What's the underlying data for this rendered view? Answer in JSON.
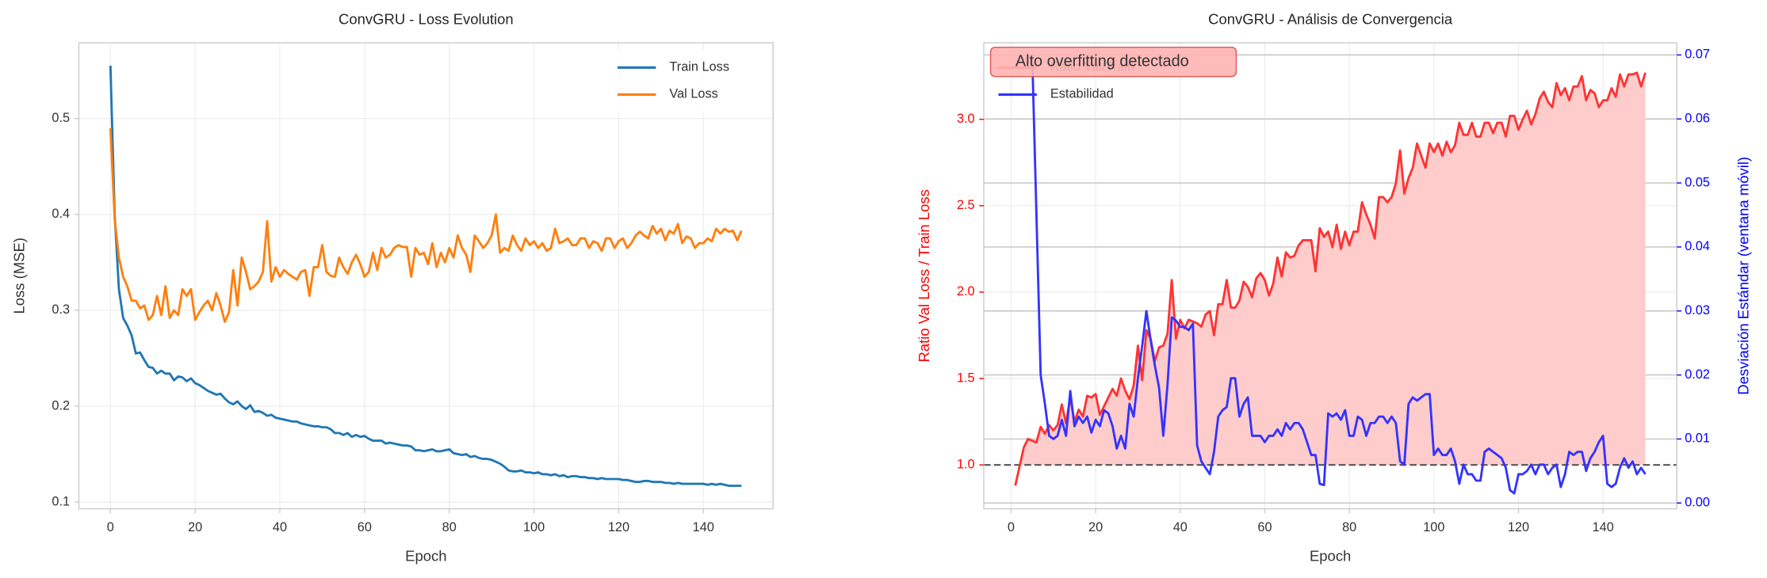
{
  "chart_data": [
    {
      "type": "line",
      "title": "ConvGRU - Loss Evolution",
      "xlabel": "Epoch",
      "ylabel": "Loss (MSE)",
      "x": [
        0,
        1,
        2,
        3,
        4,
        5,
        6,
        7,
        8,
        9,
        10,
        11,
        12,
        13,
        14,
        15,
        16,
        17,
        18,
        19,
        20,
        21,
        22,
        23,
        24,
        25,
        26,
        27,
        28,
        29,
        30,
        31,
        32,
        33,
        34,
        35,
        36,
        37,
        38,
        39,
        40,
        41,
        42,
        43,
        44,
        45,
        46,
        47,
        48,
        49,
        50,
        51,
        52,
        53,
        54,
        55,
        56,
        57,
        58,
        59,
        60,
        61,
        62,
        63,
        64,
        65,
        66,
        67,
        68,
        69,
        70,
        71,
        72,
        73,
        74,
        75,
        76,
        77,
        78,
        79,
        80,
        81,
        82,
        83,
        84,
        85,
        86,
        87,
        88,
        89,
        90,
        91,
        92,
        93,
        94,
        95,
        96,
        97,
        98,
        99,
        100,
        101,
        102,
        103,
        104,
        105,
        106,
        107,
        108,
        109,
        110,
        111,
        112,
        113,
        114,
        115,
        116,
        117,
        118,
        119,
        120,
        121,
        122,
        123,
        124,
        125,
        126,
        127,
        128,
        129,
        130,
        131,
        132,
        133,
        134,
        135,
        136,
        137,
        138,
        139,
        140,
        141,
        142,
        143,
        144,
        145,
        146,
        147,
        148,
        149
      ],
      "series": [
        {
          "name": "Train Loss",
          "color": "#1f77b4",
          "values": [
            0.555,
            0.4,
            0.322,
            0.292,
            0.284,
            0.274,
            0.255,
            0.256,
            0.248,
            0.241,
            0.24,
            0.234,
            0.237,
            0.234,
            0.234,
            0.227,
            0.231,
            0.23,
            0.226,
            0.229,
            0.224,
            0.222,
            0.219,
            0.216,
            0.214,
            0.212,
            0.213,
            0.208,
            0.204,
            0.202,
            0.205,
            0.2,
            0.197,
            0.201,
            0.194,
            0.195,
            0.193,
            0.19,
            0.191,
            0.188,
            0.187,
            0.186,
            0.185,
            0.184,
            0.184,
            0.182,
            0.181,
            0.18,
            0.179,
            0.179,
            0.178,
            0.178,
            0.176,
            0.172,
            0.172,
            0.17,
            0.172,
            0.168,
            0.17,
            0.168,
            0.169,
            0.166,
            0.164,
            0.164,
            0.164,
            0.161,
            0.162,
            0.161,
            0.16,
            0.159,
            0.159,
            0.158,
            0.154,
            0.154,
            0.153,
            0.154,
            0.155,
            0.153,
            0.153,
            0.154,
            0.155,
            0.151,
            0.15,
            0.149,
            0.15,
            0.147,
            0.148,
            0.146,
            0.145,
            0.145,
            0.144,
            0.142,
            0.14,
            0.137,
            0.133,
            0.132,
            0.132,
            0.133,
            0.131,
            0.131,
            0.13,
            0.131,
            0.129,
            0.129,
            0.128,
            0.129,
            0.127,
            0.128,
            0.126,
            0.127,
            0.127,
            0.126,
            0.126,
            0.125,
            0.125,
            0.124,
            0.125,
            0.124,
            0.124,
            0.124,
            0.124,
            0.123,
            0.123,
            0.122,
            0.121,
            0.121,
            0.122,
            0.122,
            0.121,
            0.121,
            0.121,
            0.12,
            0.12,
            0.119,
            0.12,
            0.119,
            0.119,
            0.119,
            0.119,
            0.119,
            0.119,
            0.118,
            0.119,
            0.118,
            0.119,
            0.118,
            0.117,
            0.117,
            0.117,
            0.117
          ]
        },
        {
          "name": "Val Loss",
          "color": "#ff7f0e",
          "values": [
            0.49,
            0.395,
            0.355,
            0.335,
            0.325,
            0.31,
            0.31,
            0.302,
            0.305,
            0.29,
            0.295,
            0.315,
            0.295,
            0.325,
            0.292,
            0.3,
            0.295,
            0.322,
            0.315,
            0.322,
            0.29,
            0.298,
            0.305,
            0.31,
            0.3,
            0.318,
            0.305,
            0.288,
            0.298,
            0.342,
            0.305,
            0.355,
            0.34,
            0.322,
            0.325,
            0.33,
            0.34,
            0.393,
            0.33,
            0.345,
            0.335,
            0.342,
            0.338,
            0.335,
            0.332,
            0.34,
            0.342,
            0.315,
            0.345,
            0.345,
            0.368,
            0.34,
            0.336,
            0.335,
            0.355,
            0.345,
            0.338,
            0.35,
            0.358,
            0.348,
            0.335,
            0.34,
            0.36,
            0.342,
            0.365,
            0.355,
            0.358,
            0.365,
            0.368,
            0.366,
            0.366,
            0.335,
            0.365,
            0.358,
            0.36,
            0.348,
            0.37,
            0.345,
            0.36,
            0.35,
            0.365,
            0.355,
            0.378,
            0.365,
            0.358,
            0.34,
            0.378,
            0.372,
            0.365,
            0.37,
            0.378,
            0.4,
            0.36,
            0.365,
            0.362,
            0.378,
            0.368,
            0.362,
            0.375,
            0.368,
            0.372,
            0.365,
            0.37,
            0.362,
            0.365,
            0.385,
            0.37,
            0.372,
            0.375,
            0.368,
            0.368,
            0.375,
            0.375,
            0.365,
            0.372,
            0.37,
            0.362,
            0.375,
            0.375,
            0.365,
            0.372,
            0.375,
            0.365,
            0.37,
            0.378,
            0.382,
            0.378,
            0.375,
            0.388,
            0.38,
            0.385,
            0.373,
            0.383,
            0.38,
            0.39,
            0.37,
            0.377,
            0.375,
            0.365,
            0.37,
            0.37,
            0.375,
            0.372,
            0.385,
            0.38,
            0.385,
            0.382,
            0.383,
            0.373,
            0.383
          ]
        }
      ],
      "xlim": [
        -7.45,
        156.45
      ],
      "ylim": [
        0.093,
        0.579
      ],
      "xticks": [
        0,
        20,
        40,
        60,
        80,
        100,
        120,
        140
      ],
      "yticks": [
        0.1,
        0.2,
        0.3,
        0.4,
        0.5
      ],
      "grid": true,
      "legend": "upper right"
    },
    {
      "type": "line",
      "title": "ConvGRU - Análisis de Convergencia",
      "xlabel": "Epoch",
      "ylabel": "Ratio Val Loss / Train Loss",
      "y2label": "Desviación Estándar (ventana móvil)",
      "ylabel_color": "#ff0000",
      "y2label_color": "#0000ff",
      "x": [
        1,
        2,
        3,
        4,
        5,
        6,
        7,
        8,
        9,
        10,
        11,
        12,
        13,
        14,
        15,
        16,
        17,
        18,
        19,
        20,
        21,
        22,
        23,
        24,
        25,
        26,
        27,
        28,
        29,
        30,
        31,
        32,
        33,
        34,
        35,
        36,
        37,
        38,
        39,
        40,
        41,
        42,
        43,
        44,
        45,
        46,
        47,
        48,
        49,
        50,
        51,
        52,
        53,
        54,
        55,
        56,
        57,
        58,
        59,
        60,
        61,
        62,
        63,
        64,
        65,
        66,
        67,
        68,
        69,
        70,
        71,
        72,
        73,
        74,
        75,
        76,
        77,
        78,
        79,
        80,
        81,
        82,
        83,
        84,
        85,
        86,
        87,
        88,
        89,
        90,
        91,
        92,
        93,
        94,
        95,
        96,
        97,
        98,
        99,
        100,
        101,
        102,
        103,
        104,
        105,
        106,
        107,
        108,
        109,
        110,
        111,
        112,
        113,
        114,
        115,
        116,
        117,
        118,
        119,
        120,
        121,
        122,
        123,
        124,
        125,
        126,
        127,
        128,
        129,
        130,
        131,
        132,
        133,
        134,
        135,
        136,
        137,
        138,
        139,
        140,
        141,
        142,
        143,
        144,
        145,
        146,
        147,
        148,
        149,
        150
      ],
      "series": [
        {
          "name": "Ratio Val/Train",
          "color": "#ff3333",
          "fill": "#ffcccc",
          "values": [
            0.88,
            0.99,
            1.1,
            1.15,
            1.14,
            1.13,
            1.22,
            1.18,
            1.23,
            1.2,
            1.23,
            1.35,
            1.24,
            1.39,
            1.25,
            1.32,
            1.28,
            1.4,
            1.39,
            1.41,
            1.29,
            1.34,
            1.39,
            1.44,
            1.4,
            1.5,
            1.43,
            1.38,
            1.46,
            1.69,
            1.49,
            1.78,
            1.73,
            1.6,
            1.68,
            1.69,
            1.76,
            2.07,
            1.73,
            1.84,
            1.79,
            1.84,
            1.83,
            1.82,
            1.8,
            1.87,
            1.89,
            1.75,
            1.93,
            1.93,
            2.07,
            1.91,
            1.91,
            1.95,
            2.06,
            2.03,
            1.97,
            2.08,
            2.11,
            2.07,
            1.98,
            2.05,
            2.2,
            2.09,
            2.23,
            2.2,
            2.21,
            2.27,
            2.3,
            2.3,
            2.3,
            2.12,
            2.37,
            2.32,
            2.35,
            2.26,
            2.39,
            2.25,
            2.35,
            2.27,
            2.35,
            2.35,
            2.52,
            2.45,
            2.39,
            2.31,
            2.55,
            2.55,
            2.52,
            2.55,
            2.63,
            2.82,
            2.57,
            2.66,
            2.72,
            2.86,
            2.79,
            2.72,
            2.86,
            2.81,
            2.86,
            2.79,
            2.87,
            2.81,
            2.85,
            2.98,
            2.91,
            2.91,
            2.98,
            2.9,
            2.9,
            2.98,
            2.98,
            2.92,
            2.98,
            2.98,
            2.9,
            3.02,
            3.02,
            2.94,
            3.0,
            3.05,
            2.97,
            3.03,
            3.12,
            3.16,
            3.1,
            3.07,
            3.21,
            3.14,
            3.18,
            3.11,
            3.19,
            3.19,
            3.25,
            3.11,
            3.17,
            3.15,
            3.07,
            3.11,
            3.11,
            3.18,
            3.13,
            3.26,
            3.19,
            3.26,
            3.26,
            3.27,
            3.19,
            3.27
          ]
        },
        {
          "name": "Estabilidad",
          "color": "#3333ff",
          "axis": "y2",
          "values": [
            null,
            null,
            null,
            null,
            0.07,
            0.045,
            0.02,
            0.0155,
            0.0105,
            0.01,
            0.0105,
            0.013,
            0.0105,
            0.0175,
            0.012,
            0.0135,
            0.0125,
            0.0135,
            0.011,
            0.013,
            0.012,
            0.0145,
            0.014,
            0.012,
            0.0085,
            0.0105,
            0.0085,
            0.0155,
            0.0135,
            0.0195,
            0.0245,
            0.03,
            0.0255,
            0.0215,
            0.018,
            0.0105,
            0.0185,
            0.029,
            0.0285,
            0.0275,
            0.0275,
            0.027,
            0.028,
            0.009,
            0.0065,
            0.0055,
            0.0045,
            0.008,
            0.0135,
            0.0145,
            0.015,
            0.0195,
            0.0195,
            0.0135,
            0.0155,
            0.0165,
            0.0105,
            0.0105,
            0.0105,
            0.0095,
            0.0105,
            0.0105,
            0.0115,
            0.0105,
            0.0125,
            0.0115,
            0.0125,
            0.0125,
            0.0115,
            0.0095,
            0.0075,
            0.0075,
            0.003,
            0.0028,
            0.014,
            0.0135,
            0.014,
            0.013,
            0.0145,
            0.0105,
            0.0105,
            0.0135,
            0.013,
            0.0105,
            0.0125,
            0.0125,
            0.0135,
            0.0135,
            0.0125,
            0.0135,
            0.0125,
            0.0065,
            0.006,
            0.0155,
            0.0165,
            0.016,
            0.0165,
            0.017,
            0.017,
            0.0075,
            0.0085,
            0.0075,
            0.0075,
            0.0085,
            0.0065,
            0.003,
            0.006,
            0.0045,
            0.0045,
            0.0035,
            0.0035,
            0.008,
            0.0085,
            0.008,
            0.0075,
            0.007,
            0.0055,
            0.002,
            0.0015,
            0.0045,
            0.0045,
            0.005,
            0.006,
            0.0045,
            0.006,
            0.006,
            0.0045,
            0.0055,
            0.006,
            0.0025,
            0.0045,
            0.008,
            0.0075,
            0.008,
            0.008,
            0.005,
            0.007,
            0.008,
            0.0095,
            0.0105,
            0.003,
            0.0025,
            0.003,
            0.0055,
            0.007,
            0.0055,
            0.0065,
            0.0045,
            0.0055,
            0.0045
          ]
        }
      ],
      "reference_line": 1,
      "reference_color": "#555555",
      "annotation": "Alto overfitting detectado",
      "annotation_color": "#ffb3b3",
      "xlim": [
        -6.45,
        157.45
      ],
      "ylim": [
        0.746,
        3.443
      ],
      "y2lim": [
        -0.0009,
        0.0719
      ],
      "xticks": [
        0,
        20,
        40,
        60,
        80,
        100,
        120,
        140
      ],
      "yticks": [
        {
          "value": 1,
          "label": "1.0"
        },
        1.5,
        {
          "value": 2,
          "label": "2.0"
        },
        2.5,
        {
          "value": 3,
          "label": "3.0"
        }
      ],
      "y2ticks": [
        {
          "value": 0,
          "label": "0.00"
        },
        {
          "value": 0.01,
          "label": "0.01"
        },
        {
          "value": 0.02,
          "label": "0.02"
        },
        {
          "value": 0.03,
          "label": "0.03"
        },
        {
          "value": 0.04,
          "label": "0.04"
        },
        {
          "value": 0.05,
          "label": "0.05"
        },
        {
          "value": 0.06,
          "label": "0.06"
        },
        {
          "value": 0.07,
          "label": "0.07"
        }
      ],
      "grid": true,
      "legend": "upper left"
    }
  ]
}
